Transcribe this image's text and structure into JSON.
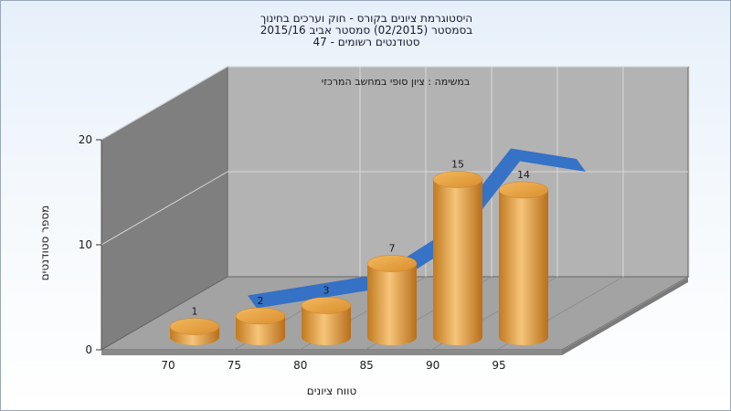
{
  "chart_data": {
    "type": "bar",
    "title_lines": [
      "היסטוגרמת ציונים בקורס - חוק וערכים בחינוך",
      "בסמסטר  (02/2015)  סמסטר אביב 2015/16",
      "סטודנטים רשומים - 47"
    ],
    "annotation": "במשימה : ציון סופי במחשב המרכזי",
    "xlabel": "טווח ציונים",
    "ylabel": "מספר סטודנטים",
    "categories": [
      "70",
      "75",
      "80",
      "85",
      "90",
      "95"
    ],
    "values": [
      1,
      2,
      3,
      7,
      15,
      14
    ],
    "y_ticks": [
      "0",
      "10",
      "20"
    ],
    "ylim": [
      0,
      20
    ],
    "trend_line": [
      1,
      2,
      3,
      7,
      15,
      14
    ],
    "colors": {
      "bar": "#e8a54a",
      "trend": "#2f6fc6",
      "back_wall": "#b3b3b3",
      "side_wall": "#7c7c7c",
      "floor": "#9e9e9e"
    }
  }
}
